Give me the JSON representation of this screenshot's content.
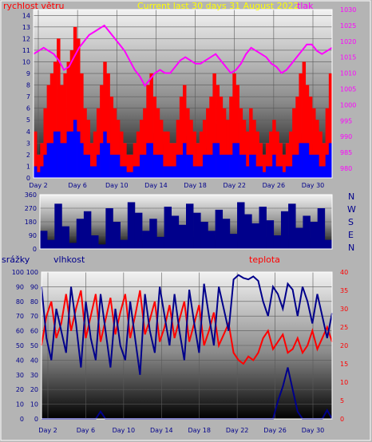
{
  "header": {
    "wind_label": "rychlost větru",
    "title": "Current last 30 days 31 August 2022",
    "pressure_label": "tlak"
  },
  "middle": {
    "compass": [
      "N",
      "W",
      "S",
      "E",
      "N"
    ]
  },
  "bottom": {
    "rain_label": "srážky",
    "humidity_label": "vlhkost",
    "temperature_label": "teplota"
  },
  "colors": {
    "wind": "#ff0000",
    "gust": "#ff0000",
    "wind_avg": "#0000ff",
    "pressure": "#ff00ff",
    "direction": "#00008b",
    "humidity": "#00008b",
    "temperature": "#ff0000",
    "rain": "#00008b",
    "title": "#ffff00",
    "frame": "#ffffff"
  },
  "chart_data": [
    {
      "type": "bar",
      "x_ticks": [
        "Day 2",
        "Day 6",
        "Day 10",
        "Day 14",
        "Day 18",
        "Day 22",
        "Day 26",
        "Day 30"
      ],
      "ylabel": "rychlost větru",
      "ylim": [
        0,
        14.5
      ],
      "y_ticks": [
        0,
        1,
        2,
        3,
        4,
        5,
        6,
        7,
        8,
        9,
        10,
        11,
        12,
        13,
        14
      ],
      "y2label": "tlak",
      "y2lim": [
        977,
        1030
      ],
      "y2_ticks": [
        980,
        985,
        990,
        995,
        1000,
        1005,
        1010,
        1015,
        1020,
        1025,
        1030
      ],
      "grid": true,
      "series": [
        {
          "name": "rychlost větru",
          "values": [
            4,
            2,
            3,
            6,
            8,
            9,
            10,
            12,
            8,
            9,
            10,
            11,
            13,
            12,
            9,
            6,
            5,
            3,
            4,
            6,
            8,
            10,
            9,
            7,
            6,
            5,
            4,
            3,
            2,
            2,
            3,
            4,
            5,
            6,
            8,
            9,
            7,
            6,
            5,
            4,
            4,
            3,
            3,
            5,
            7,
            8,
            6,
            5,
            4,
            3,
            4,
            5,
            6,
            7,
            9,
            8,
            7,
            6,
            5,
            7,
            9,
            8,
            6,
            5,
            4,
            6,
            5,
            4,
            3,
            2,
            3,
            4,
            5,
            4,
            3,
            2,
            3,
            4,
            6,
            7,
            9,
            10,
            8,
            7,
            6,
            5,
            4,
            3,
            6,
            9
          ]
        },
        {
          "name": "průměr",
          "values": [
            1,
            0.5,
            1,
            2,
            3,
            3,
            4,
            4,
            3,
            3,
            4,
            4,
            5,
            4,
            3,
            2,
            2,
            1,
            1,
            2,
            3,
            4,
            3,
            2,
            2,
            2,
            1,
            1,
            0.5,
            0.5,
            1,
            1,
            2,
            2,
            3,
            3,
            2,
            2,
            2,
            1,
            1,
            1,
            1,
            2,
            2,
            3,
            2,
            2,
            1,
            1,
            1,
            2,
            2,
            2,
            3,
            3,
            2,
            2,
            2,
            2,
            3,
            3,
            2,
            2,
            1,
            2,
            2,
            1,
            1,
            0.5,
            1,
            1,
            2,
            1,
            1,
            0.5,
            1,
            1,
            2,
            2,
            3,
            3,
            3,
            2,
            2,
            2,
            1,
            1,
            2,
            3
          ]
        },
        {
          "name": "tlak",
          "values": [
            1016,
            1017,
            1018,
            1017,
            1016,
            1014,
            1011,
            1012,
            1015,
            1018,
            1020,
            1022,
            1023,
            1024,
            1025,
            1023,
            1021,
            1019,
            1017,
            1014,
            1011,
            1009,
            1006,
            1008,
            1010,
            1011,
            1010,
            1010,
            1012,
            1014,
            1015,
            1014,
            1013,
            1013,
            1014,
            1015,
            1016,
            1014,
            1012,
            1010,
            1011,
            1013,
            1016,
            1018,
            1017,
            1016,
            1015,
            1013,
            1012,
            1010,
            1011,
            1013,
            1015,
            1017,
            1019,
            1019,
            1017,
            1016,
            1017,
            1018
          ]
        }
      ]
    },
    {
      "type": "area",
      "x_ticks": [
        "Day 2",
        "Day 6",
        "Day 10",
        "Day 14",
        "Day 18",
        "Day 22",
        "Day 26",
        "Day 30"
      ],
      "ylim": [
        0,
        360
      ],
      "y_ticks": [
        0,
        90,
        180,
        270,
        360
      ],
      "series": [
        {
          "name": "směr větru",
          "values": [
            120,
            60,
            300,
            150,
            40,
            200,
            250,
            90,
            30,
            270,
            180,
            60,
            310,
            240,
            120,
            200,
            80,
            280,
            220,
            160,
            300,
            240,
            180,
            120,
            260,
            200,
            100,
            310,
            230,
            170,
            280,
            190,
            90,
            250,
            300,
            140,
            220,
            180,
            270,
            60
          ]
        }
      ]
    },
    {
      "type": "line",
      "x_ticks": [
        "Day 2",
        "Day 6",
        "Day 10",
        "Day 14",
        "Day 18",
        "Day 22",
        "Day 26",
        "Day 30"
      ],
      "ylabel": "vlhkost",
      "ylim": [
        0,
        100
      ],
      "y_ticks": [
        0,
        10,
        20,
        30,
        40,
        50,
        60,
        70,
        80,
        90,
        100
      ],
      "y2label": "teplota",
      "y2lim": [
        0,
        40
      ],
      "y2_ticks": [
        0,
        5,
        10,
        15,
        20,
        25,
        30,
        35,
        40
      ],
      "grid": true,
      "series": [
        {
          "name": "vlhkost",
          "values": [
            90,
            55,
            40,
            75,
            60,
            45,
            90,
            65,
            35,
            80,
            55,
            40,
            85,
            60,
            35,
            75,
            50,
            40,
            80,
            55,
            30,
            85,
            60,
            45,
            90,
            70,
            50,
            85,
            60,
            40,
            88,
            65,
            45,
            92,
            70,
            50,
            90,
            75,
            60,
            95,
            98,
            96,
            95,
            97,
            94,
            80,
            70,
            90,
            85,
            75,
            92,
            88,
            70,
            90,
            80,
            65,
            85,
            70,
            55,
            72
          ]
        },
        {
          "name": "teplota",
          "values": [
            20,
            28,
            32,
            22,
            26,
            34,
            24,
            30,
            35,
            22,
            28,
            34,
            21,
            27,
            33,
            23,
            29,
            34,
            22,
            28,
            35,
            23,
            27,
            32,
            21,
            25,
            31,
            22,
            27,
            32,
            21,
            26,
            31,
            20,
            24,
            29,
            20,
            23,
            26,
            18,
            16,
            15,
            17,
            16,
            18,
            22,
            24,
            19,
            21,
            23,
            18,
            19,
            22,
            18,
            20,
            24,
            19,
            22,
            25,
            21
          ]
        },
        {
          "name": "srážky",
          "values": [
            0,
            0,
            0,
            0,
            0,
            0,
            0,
            0,
            0,
            0,
            0,
            0,
            5,
            0,
            0,
            0,
            0,
            0,
            0,
            0,
            0,
            0,
            0,
            0,
            0,
            0,
            0,
            0,
            0,
            0,
            0,
            0,
            0,
            0,
            0,
            0,
            0,
            0,
            0,
            0,
            0,
            0,
            0,
            0,
            0,
            0,
            0,
            0,
            12,
            22,
            35,
            20,
            5,
            0,
            0,
            0,
            0,
            0,
            6,
            0
          ]
        }
      ]
    }
  ]
}
